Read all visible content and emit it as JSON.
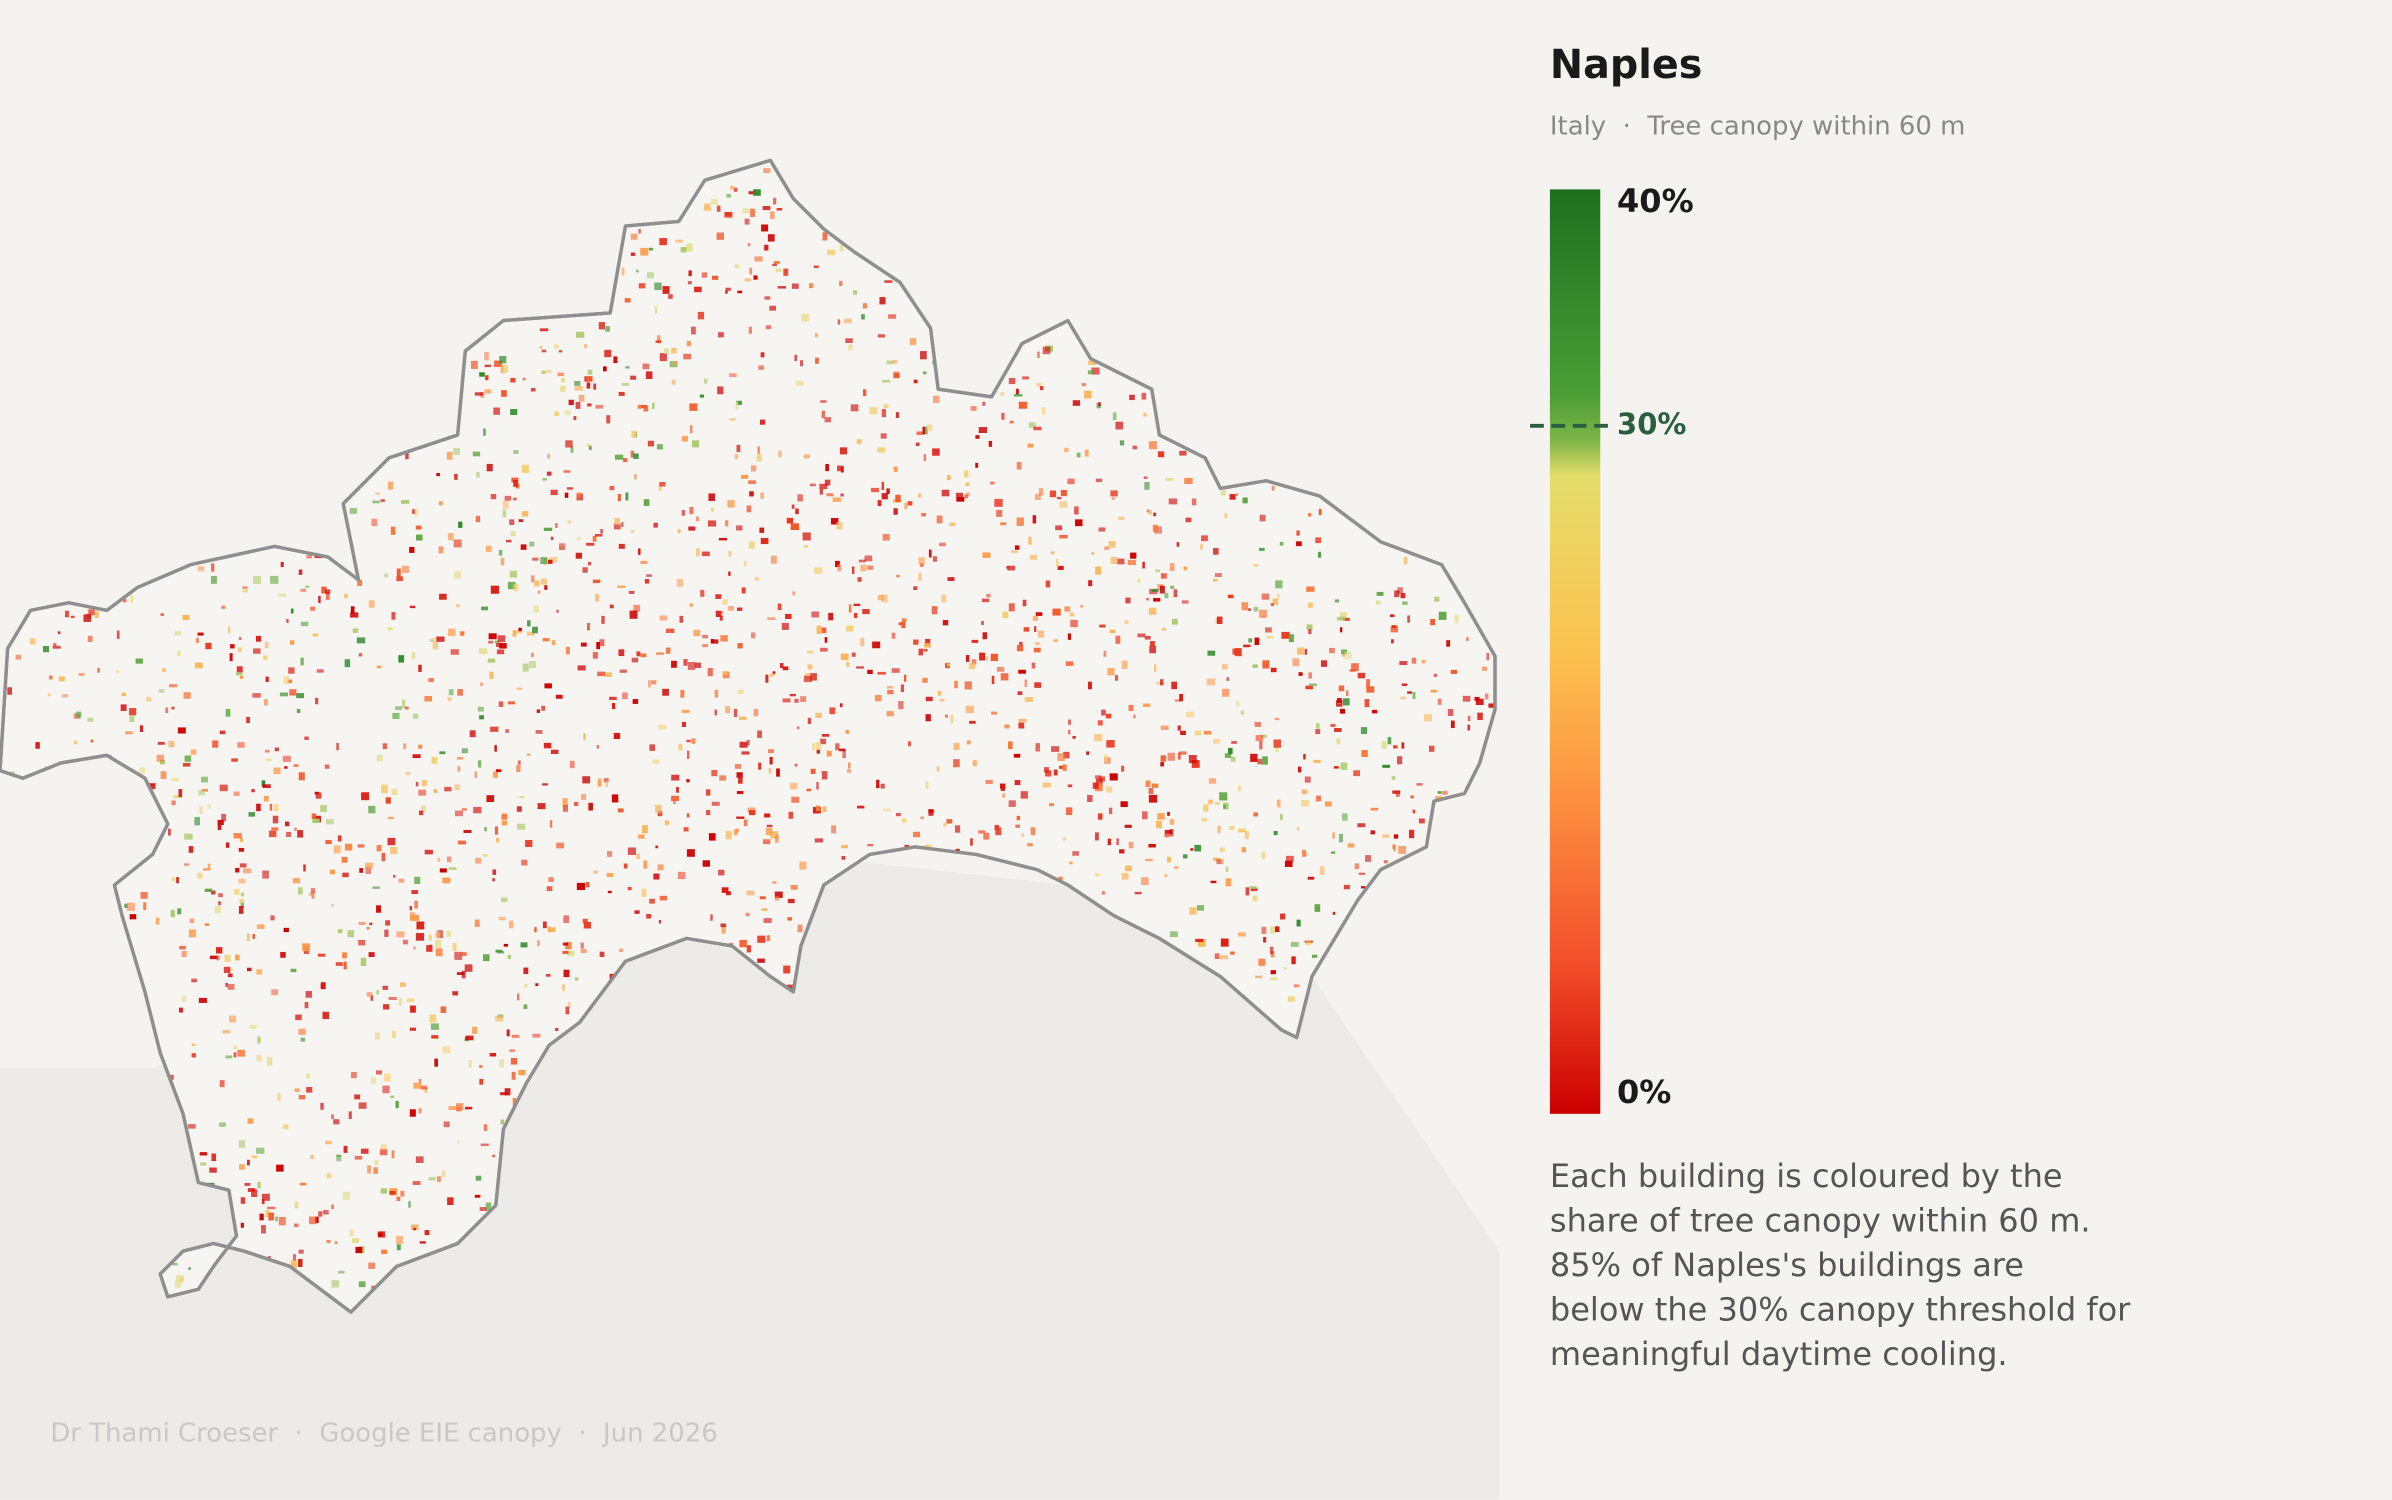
{
  "header": {
    "title": "Naples",
    "subtitle": "Italy  ·  Tree canopy within 60 m"
  },
  "legend": {
    "ticks": [
      {
        "value": 40,
        "label": "40%"
      },
      {
        "value": 0,
        "label": "0%"
      }
    ],
    "threshold": {
      "value": 30,
      "label": "30%"
    }
  },
  "description": [
    "Each building is coloured by the",
    "share of tree canopy within 60 m.",
    "85% of Naples's buildings are",
    "below the 30% canopy threshold for",
    "meaningful daytime cooling."
  ],
  "credit": "Dr Thami Croeser  ·  Google EIE canopy  ·  Jun 2026"
}
